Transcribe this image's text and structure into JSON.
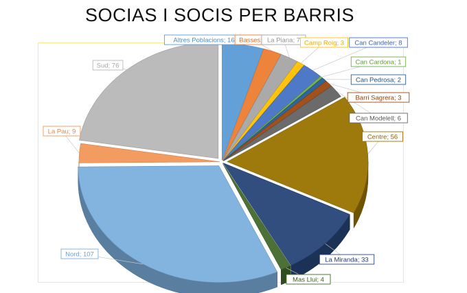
{
  "chart_data": {
    "type": "pie",
    "style": "3d-exploded",
    "title": "SOCIAS I SOCIS PER BARRIS",
    "label_format": "{name}; {value}",
    "slices": [
      {
        "name": "Altres Poblacions",
        "value": 16,
        "color": "#5b9bd5"
      },
      {
        "name": "Basses",
        "value": 7,
        "color": "#ed7d31"
      },
      {
        "name": "La Piana",
        "value": 7,
        "color": "#a5a5a5"
      },
      {
        "name": "Camp Roig",
        "value": 3,
        "color": "#ffc000"
      },
      {
        "name": "Can Candeler",
        "value": 8,
        "color": "#4472c4"
      },
      {
        "name": "Can Cardona",
        "value": 1,
        "color": "#70ad47"
      },
      {
        "name": "Can Pedrosa",
        "value": 2,
        "color": "#255e91"
      },
      {
        "name": "Barri Sagrera",
        "value": 3,
        "color": "#9e480e"
      },
      {
        "name": "Can Modelell",
        "value": 6,
        "color": "#636363"
      },
      {
        "name": "Centre",
        "value": 56,
        "color": "#997300"
      },
      {
        "name": "La Miranda",
        "value": 33,
        "color": "#264478"
      },
      {
        "name": "Mas Llui",
        "value": 4,
        "color": "#43682b"
      },
      {
        "name": "Nord",
        "value": 107,
        "color": "#7cafdd"
      },
      {
        "name": "La Pau",
        "value": 9,
        "color": "#f1975a"
      },
      {
        "name": "Sud",
        "value": 76,
        "color": "#b7b7b7"
      }
    ]
  }
}
